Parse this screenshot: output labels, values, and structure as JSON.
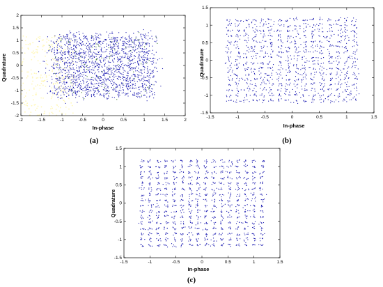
{
  "colors": {
    "points": "#1b1bb0",
    "points_alt": "#3a7a2a",
    "frame": "#000000",
    "halo": "#fff6b0"
  },
  "chart_data": [
    {
      "type": "scatter",
      "label": "(a)",
      "xlabel": "In-phase",
      "ylabel": "Quadrature",
      "xlim": [
        -2,
        2
      ],
      "ylim": [
        -2,
        2
      ],
      "xticks": [
        "-2",
        "-1.5",
        "-1",
        "-0.5",
        "0",
        "0.5",
        "1",
        "1.5",
        "2"
      ],
      "yticks": [
        "-2",
        "-1.5",
        "-1",
        "-0.5",
        "0",
        "0.5",
        "1",
        "1.5",
        "2"
      ],
      "xtick_values": [
        -2,
        -1.5,
        -1,
        -0.5,
        0,
        0.5,
        1,
        1.5,
        2
      ],
      "ytick_values": [
        -2,
        -1.5,
        -1,
        -0.5,
        0,
        0.5,
        1,
        1.5,
        2
      ],
      "constellation": {
        "grid": 16,
        "min": -1.15,
        "max": 1.15
      },
      "noise_spread": 0.12,
      "points_per_symbol": 7,
      "grid": false
    },
    {
      "type": "scatter",
      "label": "(b)",
      "xlabel": "In-phase",
      "ylabel": "Quadrature",
      "xlim": [
        -1.5,
        1.5
      ],
      "ylim": [
        -1.5,
        1.5
      ],
      "xticks": [
        "-1.5",
        "-1",
        "-0.5",
        "0",
        "0.5",
        "1",
        "1.5"
      ],
      "yticks": [
        "-1.5",
        "-1",
        "-0.5",
        "0",
        "0.5",
        "1",
        "1.5"
      ],
      "xtick_values": [
        -1.5,
        -1,
        -0.5,
        0,
        0.5,
        1,
        1.5
      ],
      "ytick_values": [
        -1.5,
        -1,
        -0.5,
        0,
        0.5,
        1,
        1.5
      ],
      "constellation": {
        "grid": 16,
        "min": -1.15,
        "max": 1.15
      },
      "noise_spread": 0.035,
      "points_per_symbol": 5,
      "grid": false
    },
    {
      "type": "scatter",
      "label": "(c)",
      "xlabel": "In-phase",
      "ylabel": "Quadrature",
      "xlim": [
        -1.5,
        1.5
      ],
      "ylim": [
        -1.5,
        1.5
      ],
      "xticks": [
        "-1.5",
        "-1",
        "-0.5",
        "0",
        "0.5",
        "1",
        "1.5"
      ],
      "yticks": [
        "-1.5",
        "-1",
        "-0.5",
        "0",
        "0.5",
        "1",
        "1.5"
      ],
      "xtick_values": [
        -1.5,
        -1,
        -0.5,
        0,
        0.5,
        1,
        1.5
      ],
      "ytick_values": [
        -1.5,
        -1,
        -0.5,
        0,
        0.5,
        1,
        1.5
      ],
      "constellation": {
        "grid": 16,
        "min": -1.15,
        "max": 1.15
      },
      "noise_spread": 0.025,
      "points_per_symbol": 5,
      "grid": false
    }
  ]
}
